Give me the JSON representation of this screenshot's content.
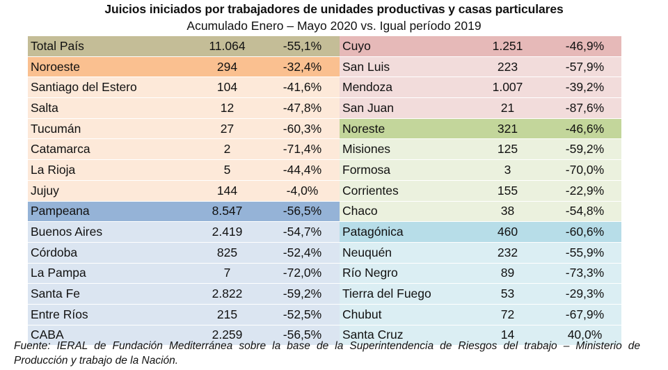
{
  "chart_data": {
    "type": "table",
    "title": "Juicios iniciados por trabajadores de unidades productivas y casas particulares",
    "subtitle": "Acumulado Enero – Mayo 2020 vs. Igual período 2019",
    "left": {
      "rows": [
        {
          "name": "Total País",
          "value": "11.064",
          "change": "-55,1%",
          "kind": "total"
        },
        {
          "name": "Noroeste",
          "value": "294",
          "change": "-32,4%",
          "kind": "region",
          "region": "noroeste"
        },
        {
          "name": "Santiago del Estero",
          "value": "104",
          "change": "-41,6%",
          "kind": "province",
          "region": "noroeste"
        },
        {
          "name": "Salta",
          "value": "12",
          "change": "-47,8%",
          "kind": "province",
          "region": "noroeste"
        },
        {
          "name": "Tucumán",
          "value": "27",
          "change": "-60,3%",
          "kind": "province",
          "region": "noroeste"
        },
        {
          "name": "Catamarca",
          "value": "2",
          "change": "-71,4%",
          "kind": "province",
          "region": "noroeste"
        },
        {
          "name": "La Rioja",
          "value": "5",
          "change": "-44,4%",
          "kind": "province",
          "region": "noroeste"
        },
        {
          "name": "Jujuy",
          "value": "144",
          "change": "-4,0%",
          "kind": "province",
          "region": "noroeste"
        },
        {
          "name": "Pampeana",
          "value": "8.547",
          "change": "-56,5%",
          "kind": "region",
          "region": "pampeana"
        },
        {
          "name": "Buenos Aires",
          "value": "2.419",
          "change": "-54,7%",
          "kind": "province",
          "region": "pampeana"
        },
        {
          "name": "Córdoba",
          "value": "825",
          "change": "-52,4%",
          "kind": "province",
          "region": "pampeana"
        },
        {
          "name": "La Pampa",
          "value": "7",
          "change": "-72,0%",
          "kind": "province",
          "region": "pampeana"
        },
        {
          "name": "Santa Fe",
          "value": "2.822",
          "change": "-59,2%",
          "kind": "province",
          "region": "pampeana"
        },
        {
          "name": "Entre Ríos",
          "value": "215",
          "change": "-52,5%",
          "kind": "province",
          "region": "pampeana"
        },
        {
          "name": "CABA",
          "value": "2.259",
          "change": "-56,5%",
          "kind": "province",
          "region": "pampeana"
        }
      ]
    },
    "right": {
      "rows": [
        {
          "name": "Cuyo",
          "value": "1.251",
          "change": "-46,9%",
          "kind": "region",
          "region": "cuyo"
        },
        {
          "name": "San Luis",
          "value": "223",
          "change": "-57,9%",
          "kind": "province",
          "region": "cuyo"
        },
        {
          "name": "Mendoza",
          "value": "1.007",
          "change": "-39,2%",
          "kind": "province",
          "region": "cuyo"
        },
        {
          "name": "San Juan",
          "value": "21",
          "change": "-87,6%",
          "kind": "province",
          "region": "cuyo"
        },
        {
          "name": "Noreste",
          "value": "321",
          "change": "-46,6%",
          "kind": "region",
          "region": "noreste"
        },
        {
          "name": "Misiones",
          "value": "125",
          "change": "-59,2%",
          "kind": "province",
          "region": "noreste"
        },
        {
          "name": "Formosa",
          "value": "3",
          "change": "-70,0%",
          "kind": "province",
          "region": "noreste"
        },
        {
          "name": "Corrientes",
          "value": "155",
          "change": "-22,9%",
          "kind": "province",
          "region": "noreste"
        },
        {
          "name": "Chaco",
          "value": "38",
          "change": "-54,8%",
          "kind": "province",
          "region": "noreste"
        },
        {
          "name": "Patagónica",
          "value": "460",
          "change": "-60,6%",
          "kind": "region",
          "region": "patagonica"
        },
        {
          "name": "Neuquén",
          "value": "232",
          "change": "-55,9%",
          "kind": "province",
          "region": "patagonica"
        },
        {
          "name": "Río Negro",
          "value": "89",
          "change": "-73,3%",
          "kind": "province",
          "region": "patagonica"
        },
        {
          "name": "Tierra del Fuego",
          "value": "53",
          "change": "-29,3%",
          "kind": "province",
          "region": "patagonica"
        },
        {
          "name": "Chubut",
          "value": "72",
          "change": "-67,9%",
          "kind": "province",
          "region": "patagonica"
        },
        {
          "name": "Santa Cruz",
          "value": "14",
          "change": "40,0%",
          "kind": "province",
          "region": "patagonica"
        }
      ]
    }
  },
  "colors": {
    "total": "#c4bd97",
    "noroeste_header": "#fac090",
    "noroeste_body": "#fde9d9",
    "pampeana_header": "#95b3d7",
    "pampeana_body": "#dbe5f1",
    "cuyo_header": "#e6b9b8",
    "cuyo_body": "#f2dcdb",
    "noreste_header": "#c3d69b",
    "noreste_body": "#ebf1de",
    "patagonica_header": "#b7dde8",
    "patagonica_body": "#dbeef3"
  },
  "footer": {
    "source": "Fuente: IERAL de Fundación Mediterránea sobre la base de la Superintendencia de Riesgos del trabajo – Ministerio de Producción y trabajo de la Nación."
  }
}
